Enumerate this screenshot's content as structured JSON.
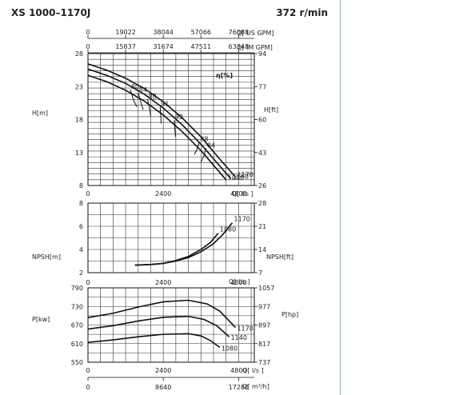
{
  "header": {
    "model": "XS 1000–1170J",
    "speed": "372 r/min"
  },
  "chart_data": {
    "type": "line",
    "flow_axes": {
      "top_us_gpm_ticks": [
        "0",
        "19022",
        "38044",
        "57066",
        "76088"
      ],
      "top_us_gpm_label": "Q[ US GPM]",
      "top_im_gpm_ticks": [
        "0",
        "15837",
        "31674",
        "47511",
        "63348"
      ],
      "top_im_gpm_label": "Q[ IM GPM]",
      "head_q_ticks": [
        "0",
        "2400",
        "4800"
      ],
      "head_q_label": "Q[ l/s ]",
      "npsh_q_ticks": [
        "0",
        "2400",
        "4800"
      ],
      "npsh_q_label": "Q[ l/s ]",
      "power_q_ticks": [
        "0",
        "2400",
        "4800"
      ],
      "power_q_label": "Q[ l/s ]",
      "bottom_m3h_ticks": [
        "0",
        "8640",
        "17280"
      ],
      "bottom_m3h_label": "Q[ m³/h]"
    },
    "head": {
      "ylabel_left": "H[m]",
      "ylabel_right": "H[ft]",
      "ylim": [
        8,
        31
      ],
      "yticks_left": [
        "28",
        "23",
        "18",
        "13",
        "8"
      ],
      "yticks_right": [
        "94",
        "77",
        "60",
        "43",
        "26"
      ],
      "efficiency_label": "η[%]",
      "series": [
        {
          "name": "1170",
          "x": [
            0,
            600,
            1200,
            1800,
            2400,
            3000,
            3600,
            4200,
            4700
          ],
          "y": [
            29.2,
            28.1,
            26.7,
            24.9,
            22.6,
            19.8,
            16.5,
            12.6,
            9.5
          ]
        },
        {
          "name": "1140",
          "x": [
            0,
            600,
            1200,
            1800,
            2400,
            3000,
            3600,
            4200,
            4550
          ],
          "y": [
            28.3,
            27.2,
            25.8,
            23.9,
            21.5,
            18.6,
            15.2,
            11.4,
            9.2
          ]
        },
        {
          "name": "1080",
          "x": [
            0,
            600,
            1200,
            1800,
            2400,
            3000,
            3600,
            4100,
            4400
          ],
          "y": [
            27.2,
            26.1,
            24.6,
            22.7,
            20.3,
            17.4,
            14.1,
            10.9,
            9.0
          ]
        }
      ],
      "efficiency_curves": [
        {
          "label": "80",
          "x": [
            1350,
            1450,
            1560
          ],
          "y": [
            24.7,
            22.9,
            21.7
          ]
        },
        {
          "label": "84",
          "x": [
            1600,
            1680,
            1760
          ],
          "y": [
            24.2,
            22.6,
            21.2
          ]
        },
        {
          "label": "88",
          "x": [
            1900,
            1960,
            2000
          ],
          "y": [
            23.0,
            21.5,
            20.1
          ]
        },
        {
          "label": "91",
          "x": [
            2300,
            2320,
            2330
          ],
          "y": [
            21.7,
            20.1,
            18.8
          ]
        },
        {
          "label": "92",
          "x": [
            2750,
            2770,
            2790
          ],
          "y": [
            19.4,
            17.8,
            16.5
          ]
        },
        {
          "label": "88",
          "x": [
            3550,
            3480,
            3390
          ],
          "y": [
            15.6,
            14.4,
            13.4
          ]
        },
        {
          "label": "84",
          "x": [
            3770,
            3690,
            3600
          ],
          "y": [
            14.5,
            13.1,
            12.1
          ]
        }
      ],
      "curve_labels": [
        "1170",
        "1140",
        "1080"
      ]
    },
    "npsh": {
      "ylabel_left": "NPSH[m]",
      "ylabel_right": "NPSH[ft]",
      "ylim": [
        2,
        8
      ],
      "yticks_left": [
        "8",
        "6",
        "4",
        "2"
      ],
      "yticks_right": [
        "28",
        "21",
        "14",
        "7"
      ],
      "series": [
        {
          "name": "1170",
          "x": [
            1500,
            2000,
            2400,
            2800,
            3200,
            3600,
            4000,
            4300,
            4600
          ],
          "y": [
            2.65,
            2.7,
            2.8,
            3.0,
            3.3,
            3.8,
            4.5,
            5.3,
            6.3
          ]
        },
        {
          "name": "1080",
          "x": [
            1500,
            2000,
            2400,
            2800,
            3200,
            3600,
            3900,
            4150
          ],
          "y": [
            2.65,
            2.7,
            2.8,
            3.05,
            3.4,
            4.0,
            4.6,
            5.4
          ]
        }
      ]
    },
    "power": {
      "ylabel_left": "P[kw]",
      "ylabel_right": "P[hp]",
      "ylim": [
        550,
        790
      ],
      "yticks_left": [
        "790",
        "730",
        "670",
        "610",
        "550"
      ],
      "yticks_right": [
        "1057",
        "977",
        "897",
        "817",
        "737"
      ],
      "series": [
        {
          "name": "1170",
          "x": [
            0,
            800,
            1600,
            2400,
            3200,
            3800,
            4200,
            4700
          ],
          "y": [
            694,
            708,
            728,
            745,
            750,
            738,
            715,
            662
          ]
        },
        {
          "name": "1140",
          "x": [
            0,
            800,
            1600,
            2400,
            3200,
            3700,
            4100,
            4500
          ],
          "y": [
            657,
            668,
            683,
            695,
            698,
            688,
            668,
            632
          ]
        },
        {
          "name": "1080",
          "x": [
            0,
            800,
            1600,
            2400,
            3200,
            3600,
            3900,
            4200
          ],
          "y": [
            614,
            622,
            632,
            640,
            642,
            635,
            620,
            598
          ]
        }
      ]
    },
    "grid": true
  }
}
